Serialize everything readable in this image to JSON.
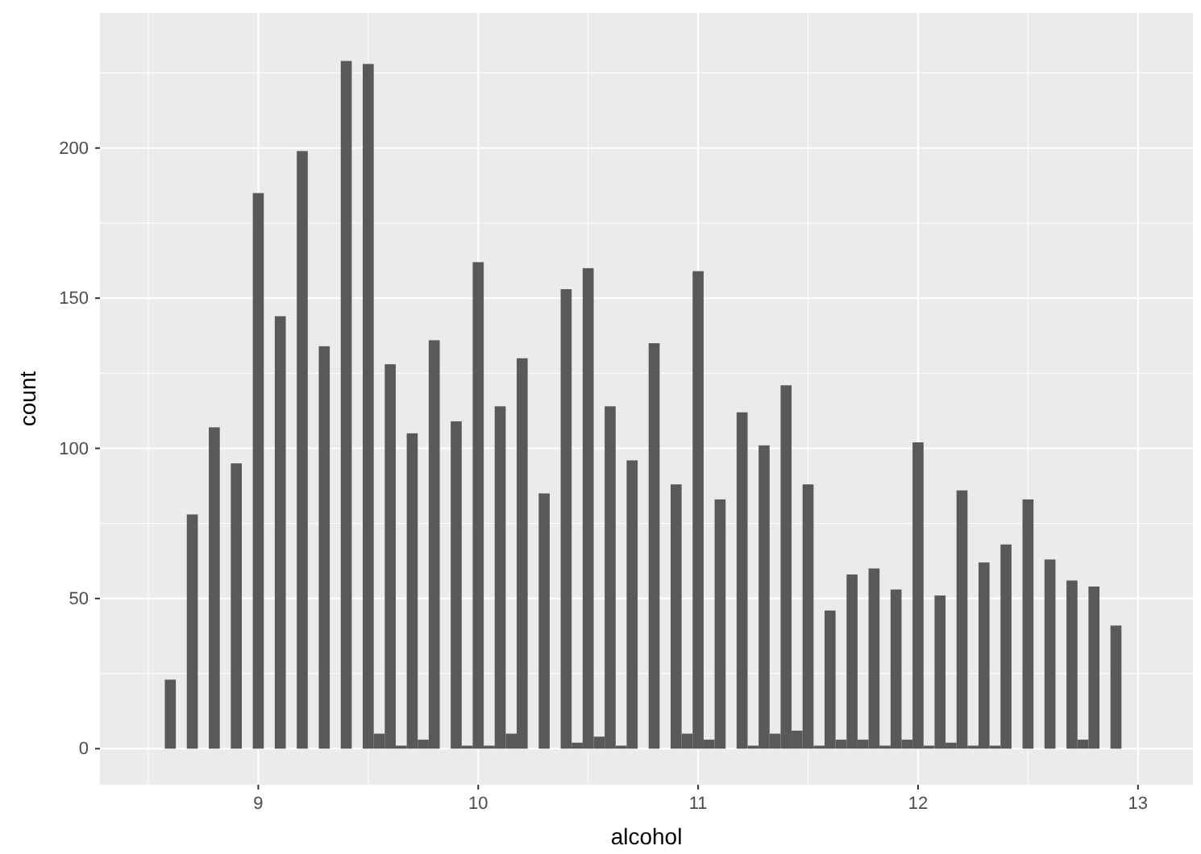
{
  "chart_data": {
    "type": "histogram",
    "xlabel": "alcohol",
    "ylabel": "count",
    "color": "#595959",
    "bins": [
      8.575,
      8.625,
      8.675,
      8.725,
      8.775,
      8.825,
      8.875,
      8.925,
      8.975,
      9.025,
      9.075,
      9.125,
      9.175,
      9.225,
      9.275,
      9.325,
      9.375,
      9.425,
      9.475,
      9.525,
      9.575,
      9.625,
      9.675,
      9.725,
      9.775,
      9.825,
      9.875,
      9.925,
      9.975,
      10.025,
      10.075,
      10.125,
      10.175,
      10.225,
      10.275,
      10.325,
      10.375,
      10.425,
      10.475,
      10.525,
      10.575,
      10.625,
      10.675,
      10.725,
      10.775,
      10.825,
      10.875,
      10.925,
      10.975,
      11.025,
      11.075,
      11.125,
      11.175,
      11.225,
      11.275,
      11.325,
      11.375,
      11.425,
      11.475,
      11.525,
      11.575,
      11.625,
      11.675,
      11.725,
      11.775,
      11.825,
      11.875,
      11.925,
      11.975,
      12.025,
      12.075,
      12.125,
      12.175,
      12.225,
      12.275,
      12.325,
      12.375,
      12.425,
      12.475,
      12.525,
      12.575,
      12.625,
      12.675,
      12.725,
      12.775,
      12.825,
      12.875,
      12.925
    ],
    "values": [
      23,
      0,
      78,
      0,
      107,
      0,
      95,
      0,
      185,
      0,
      144,
      0,
      199,
      0,
      134,
      0,
      229,
      0,
      228,
      5,
      128,
      1,
      105,
      3,
      136,
      0,
      109,
      1,
      162,
      1,
      114,
      5,
      130,
      0,
      85,
      0,
      153,
      2,
      160,
      4,
      114,
      1,
      96,
      0,
      135,
      0,
      88,
      5,
      159,
      3,
      83,
      0,
      112,
      1,
      101,
      5,
      121,
      6,
      88,
      1,
      46,
      3,
      58,
      3,
      60,
      1,
      53,
      3,
      102,
      1,
      51,
      2,
      86,
      1,
      62,
      1,
      68,
      0,
      83,
      0,
      63,
      0,
      56,
      3,
      54,
      0,
      41
    ],
    "xlim": [
      8.28,
      13.25
    ],
    "xticks": [
      9,
      10,
      11,
      12,
      13
    ],
    "ylim": [
      -12,
      245
    ],
    "yticks": [
      0,
      50,
      100,
      150,
      200
    ],
    "grid": true
  }
}
